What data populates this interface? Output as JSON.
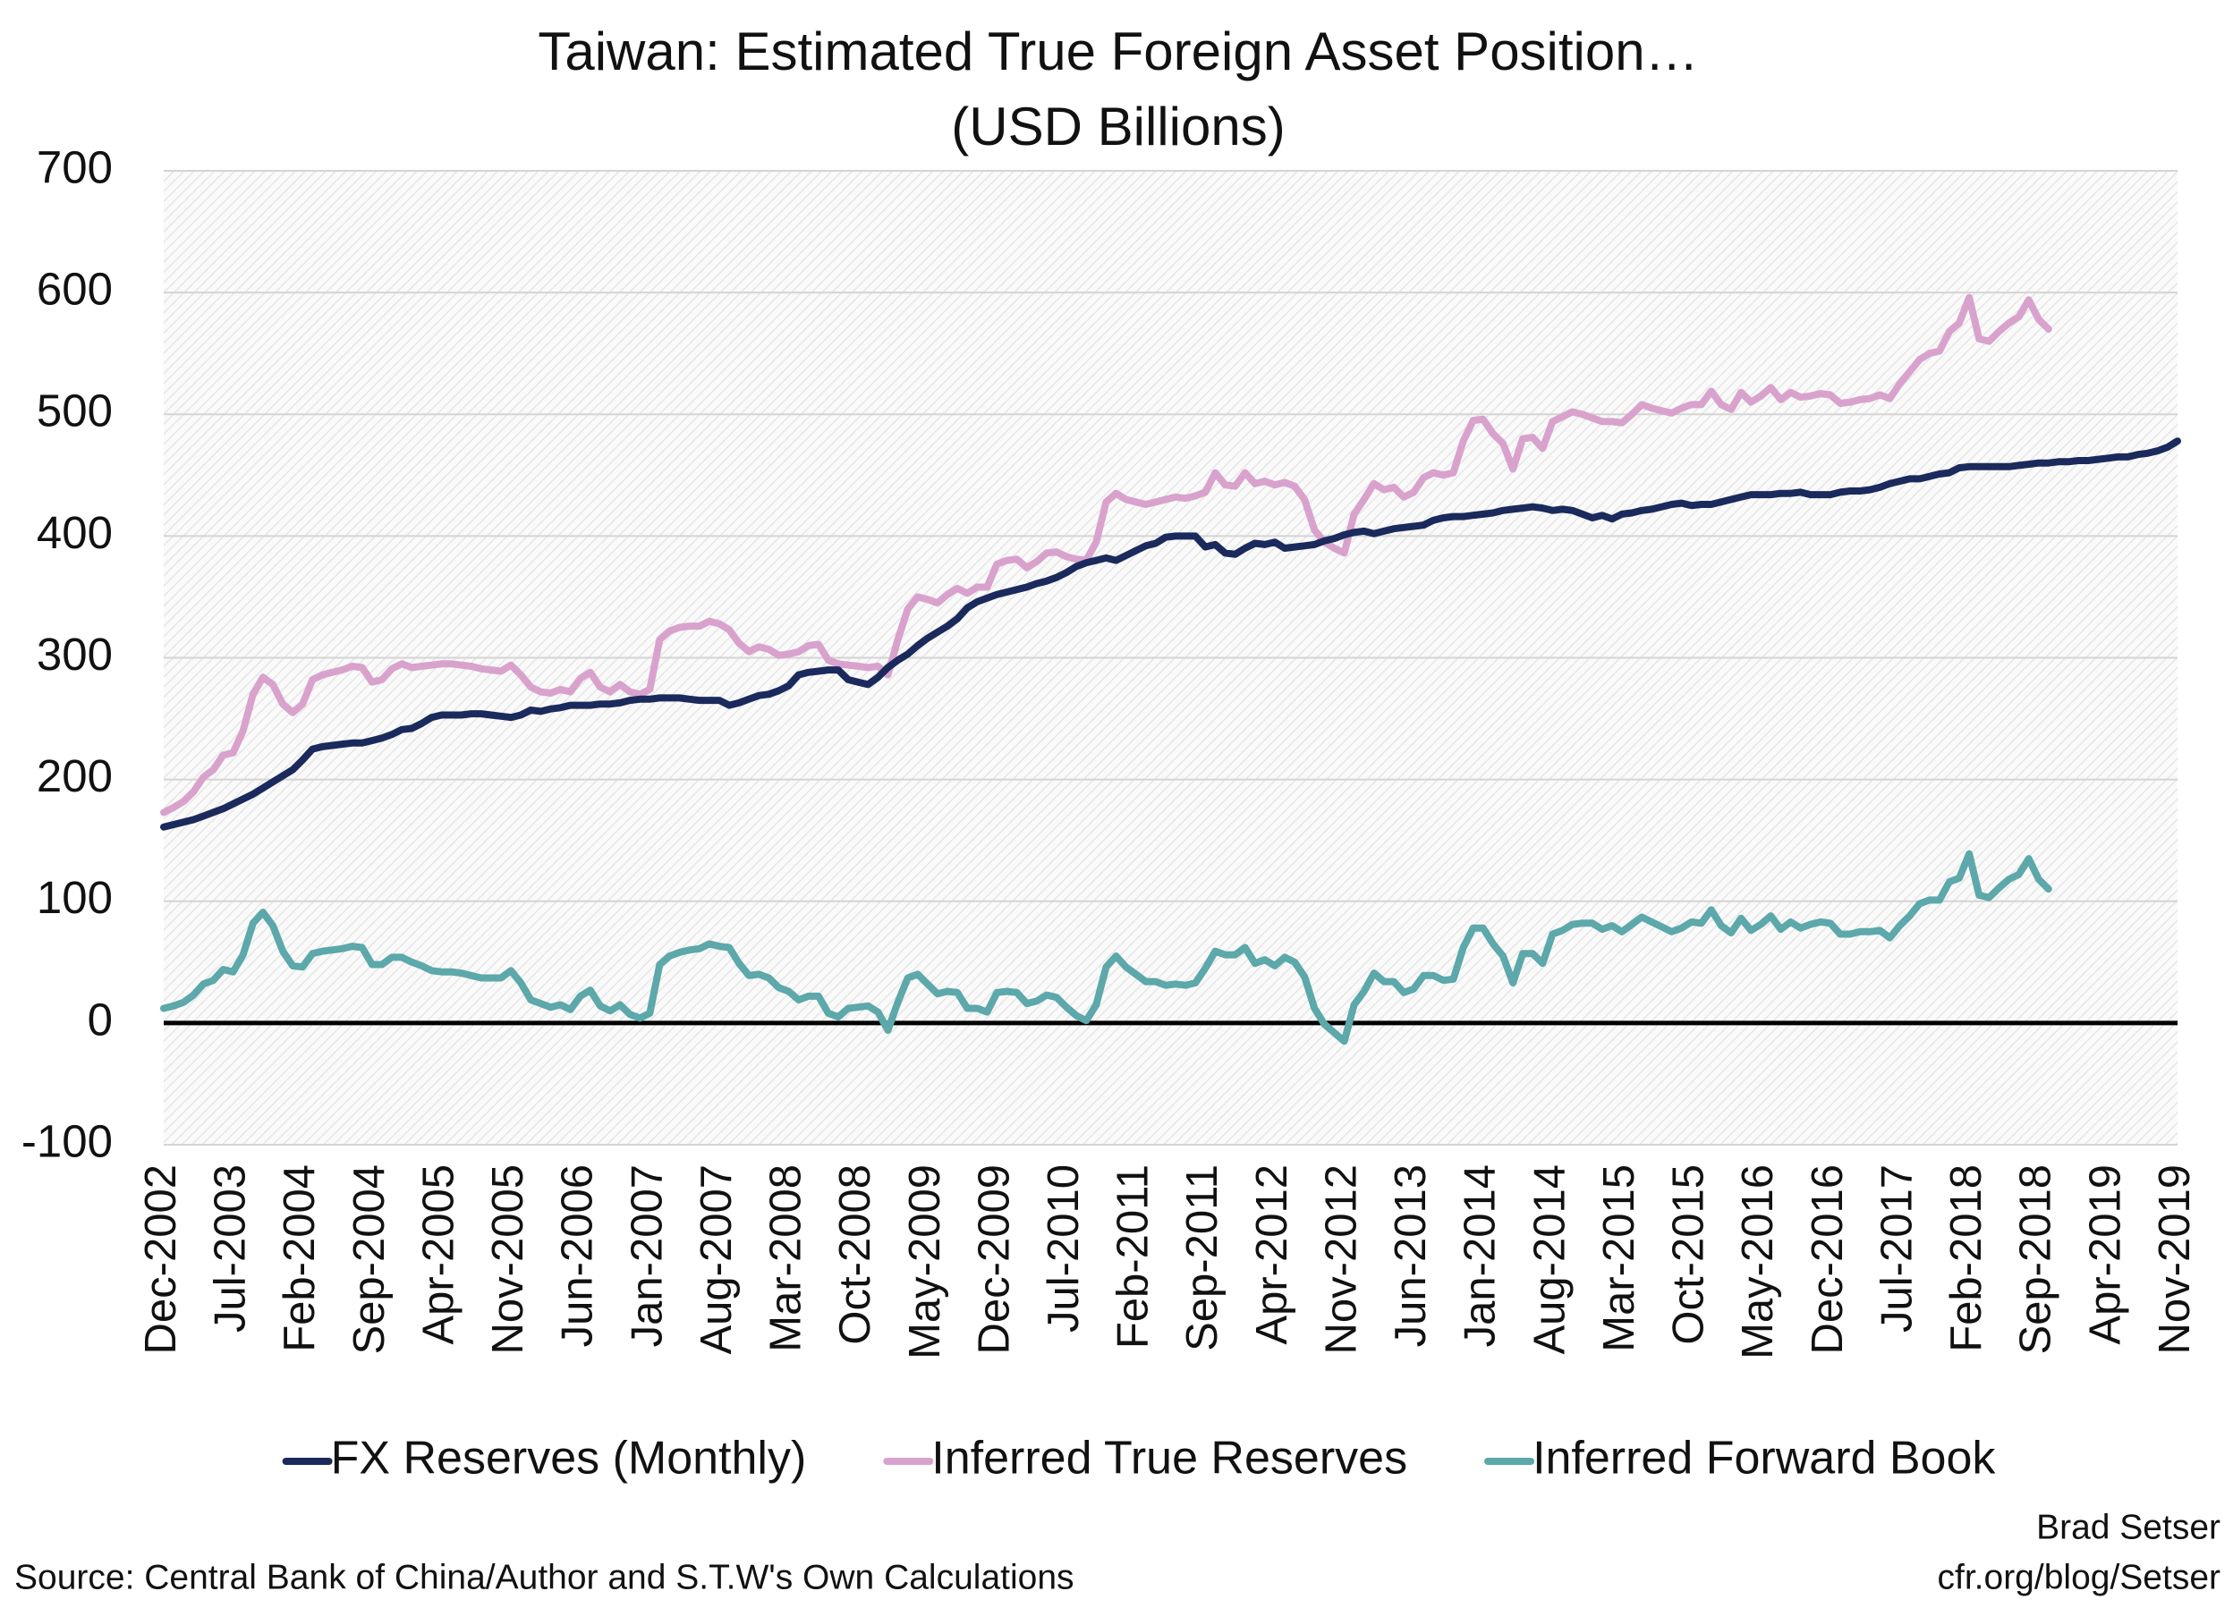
{
  "chart_data": {
    "type": "line",
    "title": "Taiwan: Estimated True Foreign Asset Position…",
    "subtitle": "(USD Billions)",
    "categories": [
      "Dec-2002",
      null,
      null,
      null,
      null,
      null,
      null,
      "Jul-2003",
      null,
      null,
      null,
      null,
      null,
      null,
      "Feb-2004",
      null,
      null,
      null,
      null,
      null,
      null,
      "Sep-2004",
      null,
      null,
      null,
      null,
      null,
      null,
      "Apr-2005",
      null,
      null,
      null,
      null,
      null,
      null,
      "Nov-2005",
      null,
      null,
      null,
      null,
      null,
      null,
      "Jun-2006",
      null,
      null,
      null,
      null,
      null,
      null,
      "Jan-2007",
      null,
      null,
      null,
      null,
      null,
      null,
      "Aug-2007",
      null,
      null,
      null,
      null,
      null,
      null,
      "Mar-2008",
      null,
      null,
      null,
      null,
      null,
      null,
      "Oct-2008",
      null,
      null,
      null,
      null,
      null,
      null,
      "May-2009",
      null,
      null,
      null,
      null,
      null,
      null,
      "Dec-2009",
      null,
      null,
      null,
      null,
      null,
      null,
      "Jul-2010",
      null,
      null,
      null,
      null,
      null,
      null,
      "Feb-2011",
      null,
      null,
      null,
      null,
      null,
      null,
      "Sep-2011",
      null,
      null,
      null,
      null,
      null,
      null,
      "Apr-2012",
      null,
      null,
      null,
      null,
      null,
      null,
      "Nov-2012",
      null,
      null,
      null,
      null,
      null,
      null,
      "Jun-2013",
      null,
      null,
      null,
      null,
      null,
      null,
      "Jan-2014",
      null,
      null,
      null,
      null,
      null,
      null,
      "Aug-2014",
      null,
      null,
      null,
      null,
      null,
      null,
      "Mar-2015",
      null,
      null,
      null,
      null,
      null,
      null,
      "Oct-2015",
      null,
      null,
      null,
      null,
      null,
      null,
      "May-2016",
      null,
      null,
      null,
      null,
      null,
      null,
      "Dec-2016",
      null,
      null,
      null,
      null,
      null,
      null,
      "Jul-2017",
      null,
      null,
      null,
      null,
      null,
      null,
      "Feb-2018",
      null,
      null,
      null,
      null,
      null,
      null,
      "Sep-2018",
      null,
      null,
      null,
      null,
      null,
      null,
      "Apr-2019",
      null,
      null,
      null,
      null,
      null,
      null,
      "Nov-2019"
    ],
    "series": [
      {
        "name": "FX Reserves (Monthly)",
        "color": "#1b2a5c",
        "values": [
          161,
          163,
          165,
          167,
          170,
          173,
          176,
          180,
          184,
          188,
          193,
          198,
          203,
          208,
          216,
          225,
          227,
          228,
          229,
          230,
          230,
          232,
          234,
          237,
          241,
          242,
          246,
          251,
          253,
          253,
          253,
          254,
          254,
          253,
          252,
          251,
          253,
          257,
          256,
          258,
          259,
          261,
          261,
          261,
          262,
          262,
          263,
          265,
          266,
          266,
          267,
          267,
          267,
          266,
          265,
          265,
          265,
          261,
          263,
          266,
          269,
          270,
          273,
          277,
          286,
          288,
          289,
          290,
          290,
          282,
          280,
          278,
          284,
          292,
          298,
          303,
          310,
          316,
          321,
          326,
          332,
          341,
          346,
          349,
          352,
          354,
          356,
          358,
          361,
          363,
          366,
          370,
          375,
          378,
          380,
          382,
          380,
          384,
          388,
          392,
          394,
          399,
          400,
          400,
          400,
          391,
          393,
          386,
          385,
          390,
          394,
          393,
          395,
          390,
          391,
          392,
          393,
          396,
          398,
          401,
          403,
          404,
          402,
          404,
          406,
          407,
          408,
          409,
          413,
          415,
          416,
          416,
          417,
          418,
          419,
          421,
          422,
          423,
          424,
          423,
          421,
          422,
          421,
          418,
          415,
          417,
          414,
          418,
          419,
          421,
          422,
          424,
          426,
          427,
          425,
          426,
          426,
          428,
          430,
          432,
          434,
          434,
          434,
          435,
          435,
          436,
          434,
          434,
          434,
          436,
          437,
          437,
          438,
          440,
          443,
          445,
          447,
          447,
          449,
          451,
          452,
          456,
          457,
          457,
          457,
          457,
          457,
          458,
          459,
          460,
          460,
          461,
          461,
          462,
          462,
          463,
          464,
          465,
          465,
          467,
          468,
          470,
          473,
          478
        ]
      },
      {
        "name": "Inferred True Reserves",
        "color": "#d9a2cd",
        "values": [
          173,
          177,
          182,
          190,
          202,
          208,
          220,
          222,
          240,
          270,
          284,
          278,
          262,
          255,
          262,
          282,
          286,
          288,
          290,
          293,
          292,
          280,
          282,
          291,
          295,
          292,
          293,
          294,
          295,
          295,
          294,
          293,
          291,
          290,
          289,
          294,
          286,
          276,
          272,
          271,
          274,
          272,
          283,
          288,
          276,
          272,
          278,
          272,
          270,
          274,
          315,
          322,
          325,
          326,
          326,
          330,
          328,
          323,
          312,
          305,
          309,
          307,
          302,
          303,
          305,
          310,
          311,
          298,
          295,
          294,
          293,
          292,
          293,
          286,
          315,
          340,
          350,
          348,
          345,
          352,
          357,
          353,
          358,
          358,
          377,
          380,
          381,
          374,
          379,
          386,
          387,
          383,
          381,
          380,
          395,
          428,
          435,
          430,
          428,
          426,
          428,
          430,
          432,
          431,
          433,
          436,
          452,
          442,
          441,
          452,
          443,
          445,
          442,
          444,
          441,
          430,
          405,
          395,
          390,
          386,
          418,
          430,
          443,
          438,
          440,
          432,
          436,
          448,
          452,
          450,
          452,
          478,
          495,
          496,
          484,
          476,
          455,
          480,
          481,
          472,
          494,
          498,
          502,
          500,
          497,
          494,
          494,
          493,
          500,
          508,
          505,
          503,
          501,
          505,
          508,
          508,
          519,
          508,
          504,
          518,
          510,
          515,
          522,
          512,
          518,
          514,
          515,
          517,
          516,
          509,
          510,
          512,
          513,
          516,
          513,
          525,
          535,
          545,
          550,
          552,
          568,
          575,
          596,
          562,
          560,
          568,
          575,
          580,
          594,
          578,
          570,
          null,
          null,
          null,
          null,
          null,
          null,
          null,
          null,
          null,
          null,
          null,
          null,
          null
        ]
      },
      {
        "name": "Inferred Forward Book",
        "color": "#5ca8aa",
        "values": [
          12,
          14,
          17,
          23,
          32,
          35,
          44,
          42,
          56,
          82,
          91,
          80,
          59,
          47,
          46,
          57,
          59,
          60,
          61,
          63,
          62,
          48,
          48,
          54,
          54,
          50,
          47,
          43,
          42,
          42,
          41,
          39,
          37,
          37,
          37,
          43,
          33,
          19,
          16,
          13,
          15,
          11,
          22,
          27,
          14,
          10,
          15,
          7,
          4,
          8,
          48,
          55,
          58,
          60,
          61,
          65,
          63,
          62,
          49,
          39,
          40,
          37,
          29,
          26,
          19,
          22,
          22,
          8,
          5,
          12,
          13,
          14,
          9,
          -6,
          17,
          37,
          40,
          32,
          24,
          26,
          25,
          12,
          12,
          9,
          25,
          26,
          25,
          16,
          18,
          23,
          21,
          13,
          6,
          2,
          15,
          46,
          55,
          46,
          40,
          34,
          34,
          31,
          32,
          31,
          33,
          45,
          59,
          56,
          56,
          62,
          49,
          52,
          47,
          54,
          50,
          38,
          12,
          -1,
          -8,
          -15,
          15,
          26,
          41,
          34,
          34,
          25,
          28,
          39,
          39,
          35,
          36,
          62,
          78,
          78,
          65,
          55,
          33,
          57,
          57,
          49,
          73,
          76,
          81,
          82,
          82,
          77,
          80,
          75,
          81,
          87,
          83,
          79,
          75,
          78,
          83,
          82,
          93,
          80,
          74,
          86,
          76,
          81,
          88,
          77,
          83,
          78,
          81,
          83,
          82,
          73,
          73,
          75,
          75,
          76,
          70,
          80,
          88,
          98,
          101,
          101,
          116,
          119,
          139,
          105,
          103,
          111,
          118,
          122,
          135,
          118,
          110,
          null,
          null,
          null,
          null,
          null,
          null,
          null,
          null,
          null,
          null,
          null,
          null,
          null
        ]
      }
    ],
    "ylim": [
      -100,
      700
    ],
    "yticks": [
      -100,
      0,
      100,
      200,
      300,
      400,
      500,
      600,
      700
    ],
    "grid": true,
    "zero_line": true,
    "legend": "bottom",
    "source": "Source: Central Bank of China/Author and S.T.W's Own Calculations",
    "credit": [
      "Brad Setser",
      "cfr.org/blog/Setser"
    ]
  }
}
